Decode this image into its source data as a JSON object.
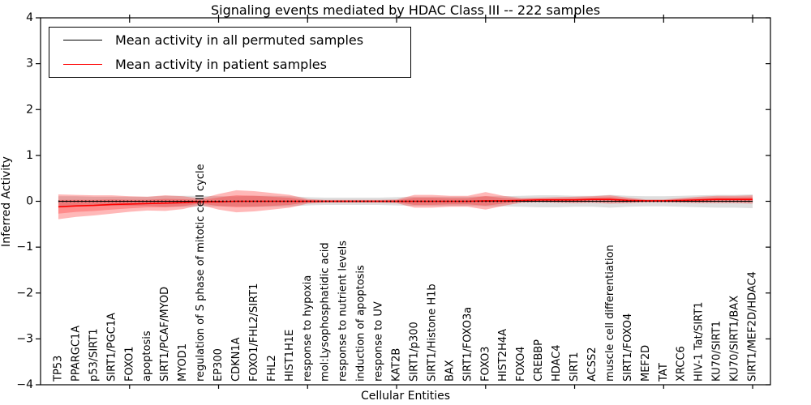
{
  "figure": {
    "title": "Signaling events mediated by HDAC Class III -- 222 samples",
    "xlabel": "Cellular Entities",
    "ylabel": "Inferred Activity"
  },
  "legend": {
    "entries": [
      {
        "label": "Mean activity in all permuted samples",
        "color": "#000000"
      },
      {
        "label": "Mean activity in patient samples",
        "color": "#ff0000"
      }
    ]
  },
  "chart_data": {
    "type": "line",
    "title": "Signaling events mediated by HDAC Class III -- 222 samples",
    "xlabel": "Cellular Entities",
    "ylabel": "Inferred Activity",
    "ylim": [
      -4,
      4
    ],
    "yticks": [
      -4,
      -3,
      -2,
      -1,
      0,
      1,
      2,
      3,
      4
    ],
    "x_major_tick_step": 5,
    "grid": false,
    "legend_position": "upper left",
    "categories": [
      "TP53",
      "PPARGC1A",
      "p53/SIRT1",
      "SIRT1/PGC1A",
      "FOXO1",
      "apoptosis",
      "SIRT1/PCAF/MYOD",
      "MYOD1",
      "regulation of S phase of mitotic cell cycle",
      "EP300",
      "CDKN1A",
      "FOXO1/FHL2/SIRT1",
      "FHL2",
      "HIST1H1E",
      "response to hypoxia",
      "mol:Lysophosphatidic acid",
      "response to nutrient levels",
      "induction of apoptosis",
      "response to UV",
      "KAT2B",
      "SIRT1/p300",
      "SIRT1/Histone H1b",
      "BAX",
      "SIRT1/FOXO3a",
      "FOXO3",
      "HIST2H4A",
      "FOXO4",
      "CREBBP",
      "HDAC4",
      "SIRT1",
      "ACSS2",
      "muscle cell differentiation",
      "SIRT1/FOXO4",
      "MEF2D",
      "TAT",
      "XRCC6",
      "HIV-1 Tat/SIRT1",
      "KU70/SIRT1",
      "KU70/SIRT1/BAX",
      "SIRT1/MEF2D/HDAC4"
    ],
    "series": [
      {
        "name": "Mean activity in all permuted samples",
        "color": "#000000",
        "line_style": "dotted",
        "band_fill": "#000000",
        "band_alpha": 0.13,
        "values": [
          0,
          0,
          0,
          0,
          0,
          0,
          0,
          0,
          0,
          0,
          0,
          0,
          0,
          0,
          0,
          0,
          0,
          0,
          0,
          0,
          0,
          0,
          0,
          0,
          0,
          0,
          0,
          0,
          0,
          0,
          0,
          0,
          0,
          0,
          0,
          0,
          0,
          0,
          0,
          0
        ],
        "band_halfwidth": [
          0.11,
          0.11,
          0.1,
          0.1,
          0.1,
          0.1,
          0.12,
          0.12,
          0.12,
          0.11,
          0.11,
          0.12,
          0.12,
          0.11,
          0.09,
          0.08,
          0.08,
          0.08,
          0.08,
          0.09,
          0.1,
          0.1,
          0.1,
          0.1,
          0.11,
          0.11,
          0.12,
          0.13,
          0.13,
          0.12,
          0.12,
          0.14,
          0.12,
          0.11,
          0.11,
          0.12,
          0.13,
          0.14,
          0.14,
          0.15
        ]
      },
      {
        "name": "Mean activity in patient samples",
        "color": "#ff0000",
        "line_style": "solid",
        "band_fill": "#ff0000",
        "band_alpha": 0.28,
        "values": [
          -0.12,
          -0.1,
          -0.09,
          -0.07,
          -0.06,
          -0.05,
          -0.04,
          -0.03,
          -0.01,
          -0.01,
          0,
          0,
          0,
          0,
          0,
          0,
          0,
          0,
          0,
          0,
          0,
          0,
          0,
          0,
          0.01,
          0.01,
          0.02,
          0.03,
          0.03,
          0.03,
          0.04,
          0.04,
          0.02,
          0.01,
          0.01,
          0.02,
          0.03,
          0.04,
          0.04,
          0.04
        ],
        "band_halfwidth": [
          0.27,
          0.24,
          0.22,
          0.2,
          0.17,
          0.15,
          0.17,
          0.14,
          0.07,
          0.17,
          0.24,
          0.22,
          0.18,
          0.14,
          0.05,
          0.03,
          0.03,
          0.03,
          0.03,
          0.04,
          0.14,
          0.14,
          0.12,
          0.12,
          0.19,
          0.11,
          0.05,
          0.05,
          0.06,
          0.07,
          0.07,
          0.09,
          0.06,
          0.03,
          0.03,
          0.05,
          0.07,
          0.08,
          0.08,
          0.09
        ],
        "inner_band_scale": 0.55
      }
    ]
  }
}
